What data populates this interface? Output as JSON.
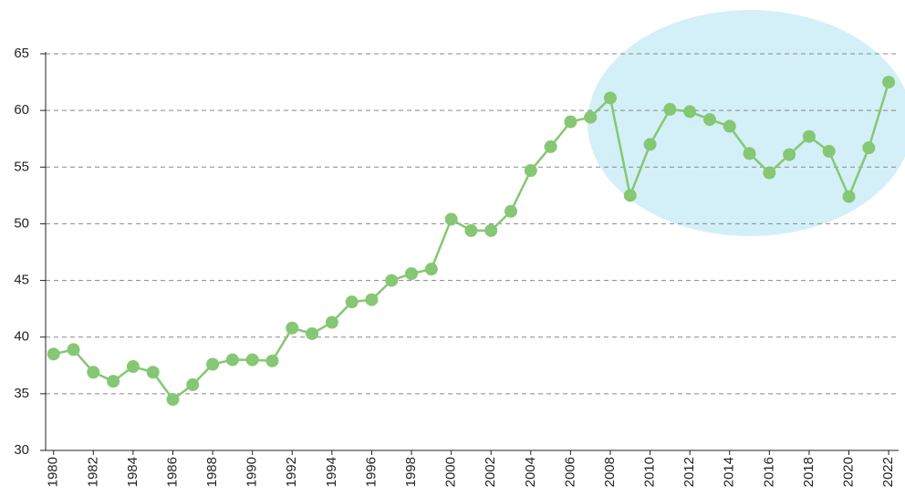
{
  "chart_data": {
    "type": "line",
    "x": [
      1980,
      1981,
      1982,
      1983,
      1984,
      1985,
      1986,
      1987,
      1988,
      1989,
      1990,
      1991,
      1992,
      1993,
      1994,
      1995,
      1996,
      1997,
      1998,
      1999,
      2000,
      2001,
      2002,
      2003,
      2004,
      2005,
      2006,
      2007,
      2008,
      2009,
      2010,
      2011,
      2012,
      2013,
      2014,
      2015,
      2016,
      2017,
      2018,
      2019,
      2020,
      2021,
      2022
    ],
    "series": [
      {
        "color": "#86c773",
        "values": [
          38.5,
          38.9,
          36.9,
          36.1,
          37.4,
          36.9,
          34.5,
          35.8,
          37.6,
          38.0,
          38.0,
          37.9,
          40.8,
          40.3,
          41.3,
          43.1,
          43.3,
          45.0,
          45.6,
          46.0,
          50.4,
          49.4,
          49.4,
          51.1,
          54.7,
          56.8,
          59.0,
          59.4,
          61.1,
          52.5,
          57.0,
          60.1,
          59.9,
          59.2,
          58.6,
          56.2,
          54.5,
          56.1,
          57.7,
          56.4,
          52.4,
          56.7,
          62.5
        ]
      }
    ],
    "xlim": [
      1979.6,
      2022.5
    ],
    "xticks": [
      1980,
      1982,
      1984,
      1986,
      1988,
      1990,
      1992,
      1994,
      1996,
      1998,
      2000,
      2002,
      2004,
      2006,
      2008,
      2010,
      2012,
      2014,
      2016,
      2018,
      2020,
      2022
    ],
    "ylim": [
      30,
      65
    ],
    "yticks": [
      30,
      35,
      40,
      45,
      50,
      55,
      60,
      65
    ],
    "grid": true
  }
}
